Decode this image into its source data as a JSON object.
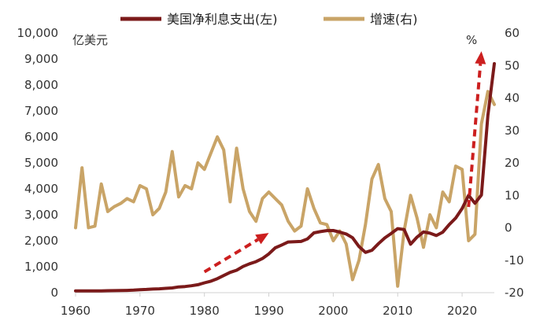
{
  "chart_data": {
    "type": "line",
    "title": "",
    "legend": {
      "placement": "top-center",
      "entries": [
        {
          "label": "美国净利息支出(左)",
          "color": "#7b1a1a"
        },
        {
          "label": "增速(右)",
          "color": "#c9a467"
        }
      ]
    },
    "left_axis": {
      "unit": "亿美元",
      "ylim": [
        0,
        10000
      ],
      "ticks": [
        "0",
        "1,000",
        "2,000",
        "3,000",
        "4,000",
        "5,000",
        "6,000",
        "7,000",
        "8,000",
        "9,000",
        "10,000"
      ]
    },
    "right_axis": {
      "unit": "%",
      "ylim": [
        -20,
        60
      ],
      "ticks": [
        "-20",
        "-10",
        "0",
        "10",
        "20",
        "30",
        "40",
        "50",
        "60"
      ]
    },
    "x_axis": {
      "xlim": [
        1960,
        2025
      ],
      "ticks": [
        "1960",
        "1970",
        "1980",
        "1990",
        "2000",
        "2010",
        "2020"
      ]
    },
    "grid": false,
    "x": [
      1960,
      1961,
      1962,
      1963,
      1964,
      1965,
      1966,
      1967,
      1968,
      1969,
      1970,
      1971,
      1972,
      1973,
      1974,
      1975,
      1976,
      1977,
      1978,
      1979,
      1980,
      1981,
      1982,
      1983,
      1984,
      1985,
      1986,
      1987,
      1988,
      1989,
      1990,
      1991,
      1992,
      1993,
      1994,
      1995,
      1996,
      1997,
      1998,
      1999,
      2000,
      2001,
      2002,
      2003,
      2004,
      2005,
      2006,
      2007,
      2008,
      2009,
      2010,
      2011,
      2012,
      2013,
      2014,
      2015,
      2016,
      2017,
      2018,
      2019,
      2020,
      2021,
      2022,
      2023,
      2024,
      2025
    ],
    "series": [
      {
        "name": "美国净利息支出(左)",
        "axis": "left",
        "color": "#7b1a1a",
        "values": [
          69,
          69,
          69,
          69,
          69,
          76,
          79,
          81,
          89,
          96,
          115,
          124,
          138,
          150,
          168,
          182,
          220,
          236,
          266,
          306,
          380,
          443,
          539,
          660,
          781,
          864,
          1009,
          1111,
          1195,
          1314,
          1494,
          1728,
          1835,
          1950,
          1965,
          1974,
          2070,
          2302,
          2350,
          2392,
          2395,
          2334,
          2262,
          2116,
          1776,
          1551,
          1633,
          1884,
          2109,
          2282,
          2468,
          2432,
          1867,
          2140,
          2340,
          2291,
          2201,
          2329,
          2624,
          2874,
          3243,
          3747,
          3441,
          3761,
          6820,
          8820
        ]
      },
      {
        "name": "增速(右)",
        "axis": "right",
        "color": "#c9a467",
        "values": [
          0,
          18.5,
          0,
          0.5,
          13.5,
          5,
          6.5,
          7.5,
          9,
          8,
          13,
          12,
          4,
          6,
          11,
          23.5,
          9.5,
          13,
          12,
          20,
          18,
          23,
          28,
          24,
          8,
          24.5,
          12,
          5,
          2,
          9,
          11,
          9,
          7,
          2,
          -1,
          0.5,
          12,
          6,
          1.5,
          1,
          -4,
          -1,
          -5,
          -16,
          -10,
          1,
          15,
          19.5,
          9,
          5,
          -18,
          -1,
          10,
          3,
          -6,
          4,
          0,
          11,
          8,
          19,
          18,
          -4,
          -2,
          32,
          42,
          38
        ]
      }
    ],
    "annotations": [
      {
        "type": "arrow",
        "style": "dashed",
        "color": "#cc1f1f",
        "from": [
          1980,
          800
        ],
        "to": [
          1990,
          2300
        ]
      },
      {
        "type": "arrow",
        "style": "dashed",
        "color": "#cc1f1f",
        "from": [
          2021,
          3300
        ],
        "to": [
          2023,
          9300
        ]
      }
    ]
  }
}
